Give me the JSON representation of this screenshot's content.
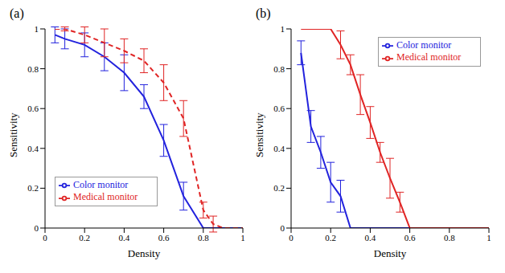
{
  "chart_data": [
    {
      "type": "line",
      "title": "(a)",
      "x_label": "Density",
      "y_label": "Sensitivity",
      "xlim": [
        0,
        1
      ],
      "xticks": [
        0,
        0.2,
        0.4,
        0.6,
        0.8,
        1
      ],
      "ylim": [
        0,
        1
      ],
      "yticks": [
        0,
        0.2,
        0.4,
        0.6,
        0.8,
        1
      ],
      "grid": false,
      "legend": "lower left",
      "series": [
        {
          "name": "Color monitor",
          "color": "#2222dd",
          "line_style": "solid",
          "marker": "none",
          "x": [
            0.05,
            0.1,
            0.2,
            0.3,
            0.4,
            0.5,
            0.6,
            0.7,
            0.8,
            0.9,
            1
          ],
          "values": [
            0.97,
            0.95,
            0.92,
            0.86,
            0.78,
            0.66,
            0.44,
            0.16,
            0,
            0,
            0
          ],
          "errors": [
            0.04,
            0.05,
            0.06,
            0.07,
            0.09,
            0.06,
            0.08,
            0.07,
            null,
            null,
            null
          ]
        },
        {
          "name": "Medical monitor",
          "color": "#e02424",
          "line_style": "dashed",
          "marker": "none",
          "x": [
            0.05,
            0.1,
            0.2,
            0.3,
            0.4,
            0.5,
            0.6,
            0.7,
            0.8,
            0.85,
            0.9,
            1
          ],
          "values": [
            1,
            1,
            0.97,
            0.93,
            0.89,
            0.84,
            0.73,
            0.55,
            0.09,
            0.02,
            0,
            0
          ],
          "errors": [
            null,
            0.01,
            0.04,
            0.07,
            0.06,
            0.06,
            0.09,
            0.09,
            0.04,
            0.04,
            null,
            null
          ]
        }
      ]
    },
    {
      "type": "line",
      "title": "(b)",
      "x_label": "Density",
      "y_label": "Sensitivity",
      "xlim": [
        0,
        1
      ],
      "xticks": [
        0,
        0.2,
        0.4,
        0.6,
        0.8,
        1
      ],
      "ylim": [
        0,
        1
      ],
      "yticks": [
        0,
        0.2,
        0.4,
        0.6,
        0.8,
        1
      ],
      "grid": false,
      "legend": "upper right",
      "series": [
        {
          "name": "Color monitor",
          "color": "#2222dd",
          "line_style": "solid",
          "marker": "none",
          "x": [
            0.05,
            0.1,
            0.15,
            0.2,
            0.25,
            0.3,
            1
          ],
          "values": [
            0.88,
            0.51,
            0.38,
            0.23,
            0.16,
            0,
            0
          ],
          "errors": [
            0.06,
            0.08,
            0.08,
            0.1,
            0.08,
            null,
            null
          ]
        },
        {
          "name": "Medical monitor",
          "color": "#e02424",
          "line_style": "solid",
          "marker": "none",
          "x": [
            0.05,
            0.2,
            0.25,
            0.3,
            0.35,
            0.4,
            0.45,
            0.5,
            0.55,
            0.6,
            1
          ],
          "values": [
            1,
            1,
            0.92,
            0.82,
            0.67,
            0.53,
            0.38,
            0.25,
            0.13,
            0,
            0
          ],
          "errors": [
            null,
            null,
            0.07,
            0.05,
            0.1,
            0.08,
            0.05,
            0.1,
            0.05,
            null,
            null
          ]
        }
      ]
    }
  ]
}
